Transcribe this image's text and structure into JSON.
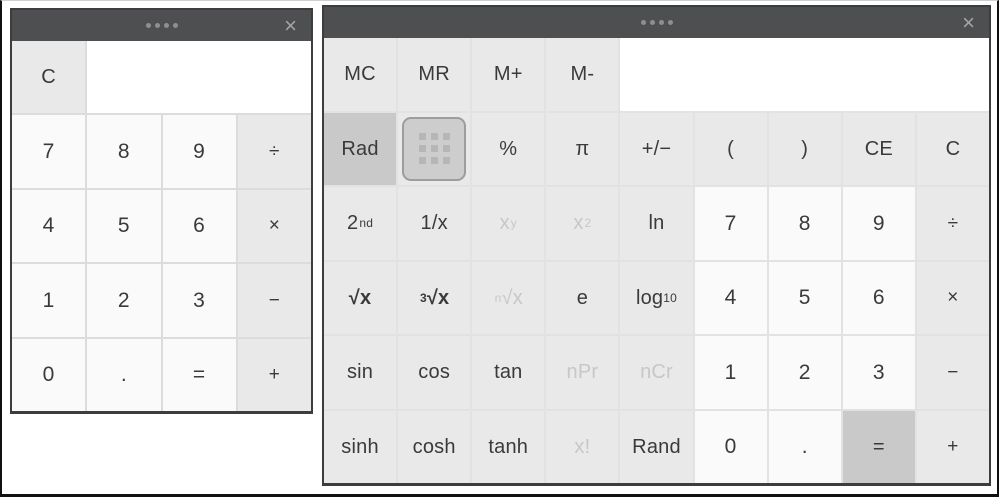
{
  "window_chrome": {
    "close_label": "×",
    "dots_count": 4
  },
  "colors": {
    "titlebar_bg": "#4e4f51",
    "window_border": "#3d3d3f",
    "function_bg": "#e9e9e9",
    "digit_bg": "#fafafa",
    "active_bg": "#c9c9c9",
    "display_bg": "#ffffff",
    "text": "#3a3a3a",
    "disabled_text": "#c7c7c7",
    "gap_basic": "#dcdcdc",
    "gap_sci": "#e2e2e2",
    "dot_color": "#8f8f8f",
    "close_color": "#a5a5a5",
    "icon_bg": "#cdcdcd",
    "icon_border": "#9d9d9d",
    "icon_square": "#b6b6b6"
  },
  "basic_calc": {
    "columns": 4,
    "display_value": "",
    "cells": [
      {
        "name": "key-clear",
        "label": "C",
        "kind": "function"
      },
      {
        "name": "display",
        "label": "",
        "kind": "display",
        "span": 3
      },
      {
        "name": "key-7",
        "label": "7",
        "kind": "digit"
      },
      {
        "name": "key-8",
        "label": "8",
        "kind": "digit"
      },
      {
        "name": "key-9",
        "label": "9",
        "kind": "digit"
      },
      {
        "name": "key-divide",
        "label": "÷",
        "kind": "operator"
      },
      {
        "name": "key-4",
        "label": "4",
        "kind": "digit"
      },
      {
        "name": "key-5",
        "label": "5",
        "kind": "digit"
      },
      {
        "name": "key-6",
        "label": "6",
        "kind": "digit"
      },
      {
        "name": "key-multiply",
        "label": "×",
        "kind": "operator"
      },
      {
        "name": "key-1",
        "label": "1",
        "kind": "digit"
      },
      {
        "name": "key-2",
        "label": "2",
        "kind": "digit"
      },
      {
        "name": "key-3",
        "label": "3",
        "kind": "digit"
      },
      {
        "name": "key-subtract",
        "label": "−",
        "kind": "operator"
      },
      {
        "name": "key-0",
        "label": "0",
        "kind": "digit"
      },
      {
        "name": "key-decimal",
        "label": ".",
        "kind": "digit"
      },
      {
        "name": "key-equals",
        "label": "=",
        "kind": "digit"
      },
      {
        "name": "key-add",
        "label": "+",
        "kind": "operator"
      }
    ]
  },
  "scientific_calc": {
    "columns": 9,
    "display_value": "",
    "cells": [
      {
        "name": "key-memory-clear",
        "label": "MC",
        "kind": "function"
      },
      {
        "name": "key-memory-recall",
        "label": "MR",
        "kind": "function"
      },
      {
        "name": "key-memory-add",
        "label": "M+",
        "kind": "function"
      },
      {
        "name": "key-memory-subtract",
        "label": "M-",
        "kind": "function"
      },
      {
        "name": "display",
        "label": "",
        "kind": "display",
        "span": 5
      },
      {
        "name": "key-rad",
        "label": "Rad",
        "kind": "active"
      },
      {
        "name": "key-keypad-toggle",
        "label": "",
        "kind": "icon"
      },
      {
        "name": "key-percent",
        "label": "%",
        "kind": "function"
      },
      {
        "name": "key-pi",
        "label": "π",
        "kind": "function"
      },
      {
        "name": "key-plus-minus",
        "label": "+/−",
        "kind": "function"
      },
      {
        "name": "key-open-paren",
        "label": "(",
        "kind": "function"
      },
      {
        "name": "key-close-paren",
        "label": ")",
        "kind": "function"
      },
      {
        "name": "key-clear-entry",
        "label": "CE",
        "kind": "function"
      },
      {
        "name": "key-clear",
        "label": "C",
        "kind": "function"
      },
      {
        "name": "key-2nd",
        "label": "2<sup>nd</sup>",
        "html": true,
        "kind": "function"
      },
      {
        "name": "key-reciprocal",
        "label": "1/x",
        "kind": "function"
      },
      {
        "name": "key-x-power-y",
        "label": "x<sup>y</sup>",
        "html": true,
        "kind": "disabled"
      },
      {
        "name": "key-x-squared",
        "label": "x<sup>2</sup>",
        "html": true,
        "kind": "disabled"
      },
      {
        "name": "key-ln",
        "label": "ln",
        "kind": "function"
      },
      {
        "name": "key-7",
        "label": "7",
        "kind": "digit"
      },
      {
        "name": "key-8",
        "label": "8",
        "kind": "digit"
      },
      {
        "name": "key-9",
        "label": "9",
        "kind": "digit"
      },
      {
        "name": "key-divide",
        "label": "÷",
        "kind": "operator"
      },
      {
        "name": "key-sqrt",
        "label": "√x",
        "kind": "function",
        "bold": true
      },
      {
        "name": "key-cbrt",
        "label": "<sup>3</sup>√x",
        "html": true,
        "kind": "function",
        "bold": true
      },
      {
        "name": "key-nth-root",
        "label": "<sup>n</sup>√x",
        "html": true,
        "kind": "disabled"
      },
      {
        "name": "key-e",
        "label": "e",
        "kind": "function"
      },
      {
        "name": "key-log10",
        "label": "log<sub>10</sub>",
        "html": true,
        "kind": "function"
      },
      {
        "name": "key-4",
        "label": "4",
        "kind": "digit"
      },
      {
        "name": "key-5",
        "label": "5",
        "kind": "digit"
      },
      {
        "name": "key-6",
        "label": "6",
        "kind": "digit"
      },
      {
        "name": "key-multiply",
        "label": "×",
        "kind": "operator"
      },
      {
        "name": "key-sin",
        "label": "sin",
        "kind": "function"
      },
      {
        "name": "key-cos",
        "label": "cos",
        "kind": "function"
      },
      {
        "name": "key-tan",
        "label": "tan",
        "kind": "function"
      },
      {
        "name": "key-npr",
        "label": "nPr",
        "kind": "disabled"
      },
      {
        "name": "key-ncr",
        "label": "nCr",
        "kind": "disabled"
      },
      {
        "name": "key-1",
        "label": "1",
        "kind": "digit"
      },
      {
        "name": "key-2",
        "label": "2",
        "kind": "digit"
      },
      {
        "name": "key-3",
        "label": "3",
        "kind": "digit"
      },
      {
        "name": "key-subtract",
        "label": "−",
        "kind": "operator"
      },
      {
        "name": "key-sinh",
        "label": "sinh",
        "kind": "function"
      },
      {
        "name": "key-cosh",
        "label": "cosh",
        "kind": "function"
      },
      {
        "name": "key-tanh",
        "label": "tanh",
        "kind": "function"
      },
      {
        "name": "key-factorial",
        "label": "x!",
        "kind": "disabled"
      },
      {
        "name": "key-rand",
        "label": "Rand",
        "kind": "function"
      },
      {
        "name": "key-0",
        "label": "0",
        "kind": "digit"
      },
      {
        "name": "key-decimal",
        "label": ".",
        "kind": "digit"
      },
      {
        "name": "key-equals",
        "label": "=",
        "kind": "active"
      },
      {
        "name": "key-add",
        "label": "+",
        "kind": "operator"
      }
    ]
  }
}
